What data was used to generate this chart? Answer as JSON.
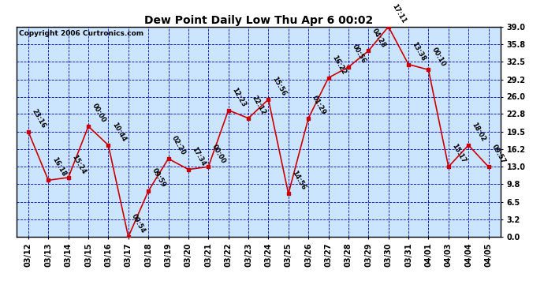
{
  "title": "Dew Point Daily Low Thu Apr 6 00:02",
  "copyright": "Copyright 2006 Curtronics.com",
  "x_labels": [
    "03/12",
    "03/13",
    "03/14",
    "03/15",
    "03/16",
    "03/17",
    "03/18",
    "03/19",
    "03/20",
    "03/21",
    "03/22",
    "03/23",
    "03/24",
    "03/25",
    "03/26",
    "03/27",
    "03/28",
    "03/29",
    "03/30",
    "03/31",
    "04/01",
    "04/03",
    "04/04",
    "04/05"
  ],
  "y_values": [
    19.5,
    10.5,
    11.0,
    20.5,
    17.0,
    0.0,
    8.5,
    14.5,
    12.5,
    13.0,
    23.5,
    22.0,
    25.5,
    8.0,
    22.0,
    29.5,
    31.5,
    34.5,
    39.0,
    32.0,
    31.0,
    13.0,
    17.0,
    13.0
  ],
  "point_labels": [
    "23:16",
    "16:18",
    "15:24",
    "00:00",
    "10:44",
    "09:54",
    "09:59",
    "02:20",
    "17:34",
    "00:00",
    "12:23",
    "22:12",
    "15:56",
    "14:56",
    "01:29",
    "16:22",
    "00:56",
    "04:28",
    "17:11",
    "13:38",
    "00:10",
    "15:17",
    "18:02",
    "09:57"
  ],
  "ylim": [
    0.0,
    39.0
  ],
  "yticks": [
    0.0,
    3.2,
    6.5,
    9.8,
    13.0,
    16.2,
    19.5,
    22.8,
    26.0,
    29.2,
    32.5,
    35.8,
    39.0
  ],
  "line_color": "#cc0000",
  "marker_color": "#cc0000",
  "bg_color": "#cce5ff",
  "fig_bg_color": "#ffffff",
  "grid_color": "#0000bb",
  "border_color": "#000000",
  "title_color": "#000000",
  "label_color": "#000000",
  "title_fontsize": 10,
  "tick_fontsize": 7,
  "label_fontsize": 6,
  "copyright_fontsize": 6.5
}
